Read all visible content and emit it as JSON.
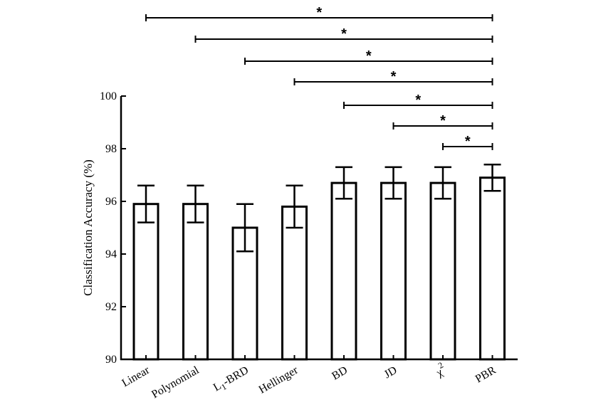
{
  "chart_data": {
    "type": "bar",
    "title": "",
    "xlabel": "",
    "ylabel": "Classification Accuracy (%)",
    "ylim": [
      90,
      100
    ],
    "yticks": [
      "90",
      "92",
      "94",
      "96",
      "98",
      "100"
    ],
    "categories": [
      "Linear",
      "Polynomial",
      "L1-BRD",
      "Hellinger",
      "BD",
      "JD",
      "χ2",
      "PBR"
    ],
    "category_labels": [
      {
        "main": "Linear",
        "sub": "",
        "sup": "",
        "tail": ""
      },
      {
        "main": "Polynomial",
        "sub": "",
        "sup": "",
        "tail": ""
      },
      {
        "main": "L",
        "sub": "1",
        "sup": "",
        "tail": "-BRD"
      },
      {
        "main": "Hellinger",
        "sub": "",
        "sup": "",
        "tail": ""
      },
      {
        "main": "BD",
        "sub": "",
        "sup": "",
        "tail": ""
      },
      {
        "main": "JD",
        "sub": "",
        "sup": "",
        "tail": ""
      },
      {
        "main": "χ",
        "sub": "",
        "sup": "2",
        "tail": ""
      },
      {
        "main": "PBR",
        "sub": "",
        "sup": "",
        "tail": ""
      }
    ],
    "values": [
      95.9,
      95.9,
      95.0,
      95.8,
      96.7,
      96.7,
      96.7,
      96.9
    ],
    "error_low": [
      95.2,
      95.2,
      94.1,
      95.0,
      96.1,
      96.1,
      96.1,
      96.4
    ],
    "error_high": [
      96.6,
      96.6,
      95.9,
      96.6,
      97.3,
      97.3,
      97.3,
      97.4
    ],
    "significance": [
      {
        "from": "Linear",
        "to": "PBR",
        "label": "*"
      },
      {
        "from": "Polynomial",
        "to": "PBR",
        "label": "*"
      },
      {
        "from": "L1-BRD",
        "to": "PBR",
        "label": "*"
      },
      {
        "from": "Hellinger",
        "to": "PBR",
        "label": "*"
      },
      {
        "from": "BD",
        "to": "PBR",
        "label": "*"
      },
      {
        "from": "JD",
        "to": "PBR",
        "label": "*"
      },
      {
        "from": "χ2",
        "to": "PBR",
        "label": "*"
      }
    ]
  }
}
